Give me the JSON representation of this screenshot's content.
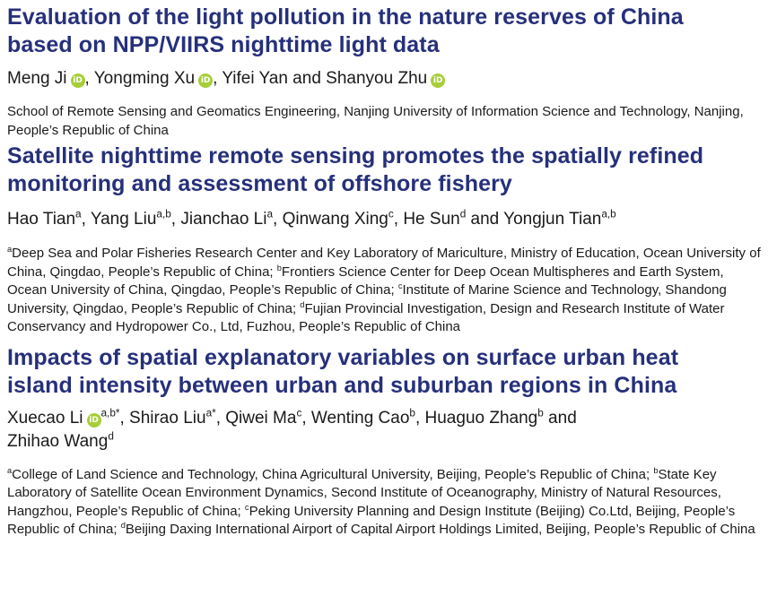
{
  "articles": [
    {
      "title_line1": "Evaluation of the light pollution in the nature reserves of China",
      "title_line2": "based on NPP/VIIRS nighttime light data",
      "authors": [
        {
          "name": "Meng Ji",
          "orcid": true,
          "sep": ", "
        },
        {
          "name": "Yongming Xu",
          "orcid": true,
          "sep": ", "
        },
        {
          "name": "Yifei Yan",
          "sep": " and "
        },
        {
          "name": "Shanyou Zhu",
          "orcid": true
        }
      ],
      "affiliation": "School of Remote Sensing and Geomatics Engineering, Nanjing University of Information Science and Technology, Nanjing, People’s Republic of China"
    },
    {
      "title_line1": "Satellite nighttime remote sensing promotes the spatially refined",
      "title_line2": "monitoring and assessment of offshore fishery",
      "authors": [
        {
          "name": "Hao Tian",
          "sup": "a",
          "sep": ", "
        },
        {
          "name": "Yang Liu",
          "sup": "a,b",
          "sep": ", "
        },
        {
          "name": "Jianchao Li",
          "sup": "a",
          "sep": ", "
        },
        {
          "name": "Qinwang Xing",
          "sup": "c",
          "sep": ", "
        },
        {
          "name": "He Sun",
          "sup": "d",
          "sep": " and "
        },
        {
          "name": "Yongjun Tian",
          "sup": "a,b"
        }
      ],
      "affiliations": [
        {
          "sup": "a",
          "text": "Deep Sea and Polar Fisheries Research Center and Key Laboratory of Mariculture, Ministry of Education, Ocean University of China, Qingdao, People’s Republic of China; "
        },
        {
          "sup": "b",
          "text": "Frontiers Science Center for Deep Ocean Multispheres and Earth System, Ocean University of China, Qingdao, People’s Republic of China; "
        },
        {
          "sup": "c",
          "text": "Institute of Marine Science and Technology, Shandong University, Qingdao, People’s Republic of China; "
        },
        {
          "sup": "d",
          "text": "Fujian Provincial Investigation, Design and Research Institute of Water Conservancy and Hydropower Co., Ltd, Fuzhou, People’s Republic of China"
        }
      ]
    },
    {
      "title_line1": "Impacts of spatial explanatory variables on surface urban heat",
      "title_line2": "island intensity between urban and suburban regions in China",
      "authors": [
        {
          "name": "Xuecao Li",
          "orcid": true,
          "sup": "a,b*",
          "sep": ", "
        },
        {
          "name": "Shirao Liu",
          "sup": "a*",
          "sep": ", "
        },
        {
          "name": "Qiwei Ma",
          "sup": "c",
          "sep": ", "
        },
        {
          "name": "Wenting Cao",
          "sup": "b",
          "sep": ", "
        },
        {
          "name": "Huaguo Zhang",
          "sup": "b",
          "sep": " and "
        },
        {
          "name": "Zhihao Wang",
          "sup": "d",
          "break_before": true
        }
      ],
      "affiliations": [
        {
          "sup": "a",
          "text": "College of Land Science and Technology, China Agricultural University, Beijing, People’s Republic of China; "
        },
        {
          "sup": "b",
          "text": "State Key Laboratory of Satellite Ocean Environment Dynamics, Second Institute of Oceanography, Ministry of Natural Resources, Hangzhou, People’s Republic of China; "
        },
        {
          "sup": "c",
          "text": "Peking University Planning and Design Institute (Beijing) Co.Ltd, Beijing, People’s Republic of China; "
        },
        {
          "sup": "d",
          "text": "Beijing Daxing International Airport of Capital Airport Holdings Limited, Beijing, People’s Republic of China"
        }
      ]
    }
  ],
  "icons": {
    "orcid": "orcid-icon",
    "orcid_glyph": "iD",
    "orcid_color": "#a6ce39"
  },
  "colors": {
    "title": "#26307a",
    "body": "#1a1a1a"
  }
}
